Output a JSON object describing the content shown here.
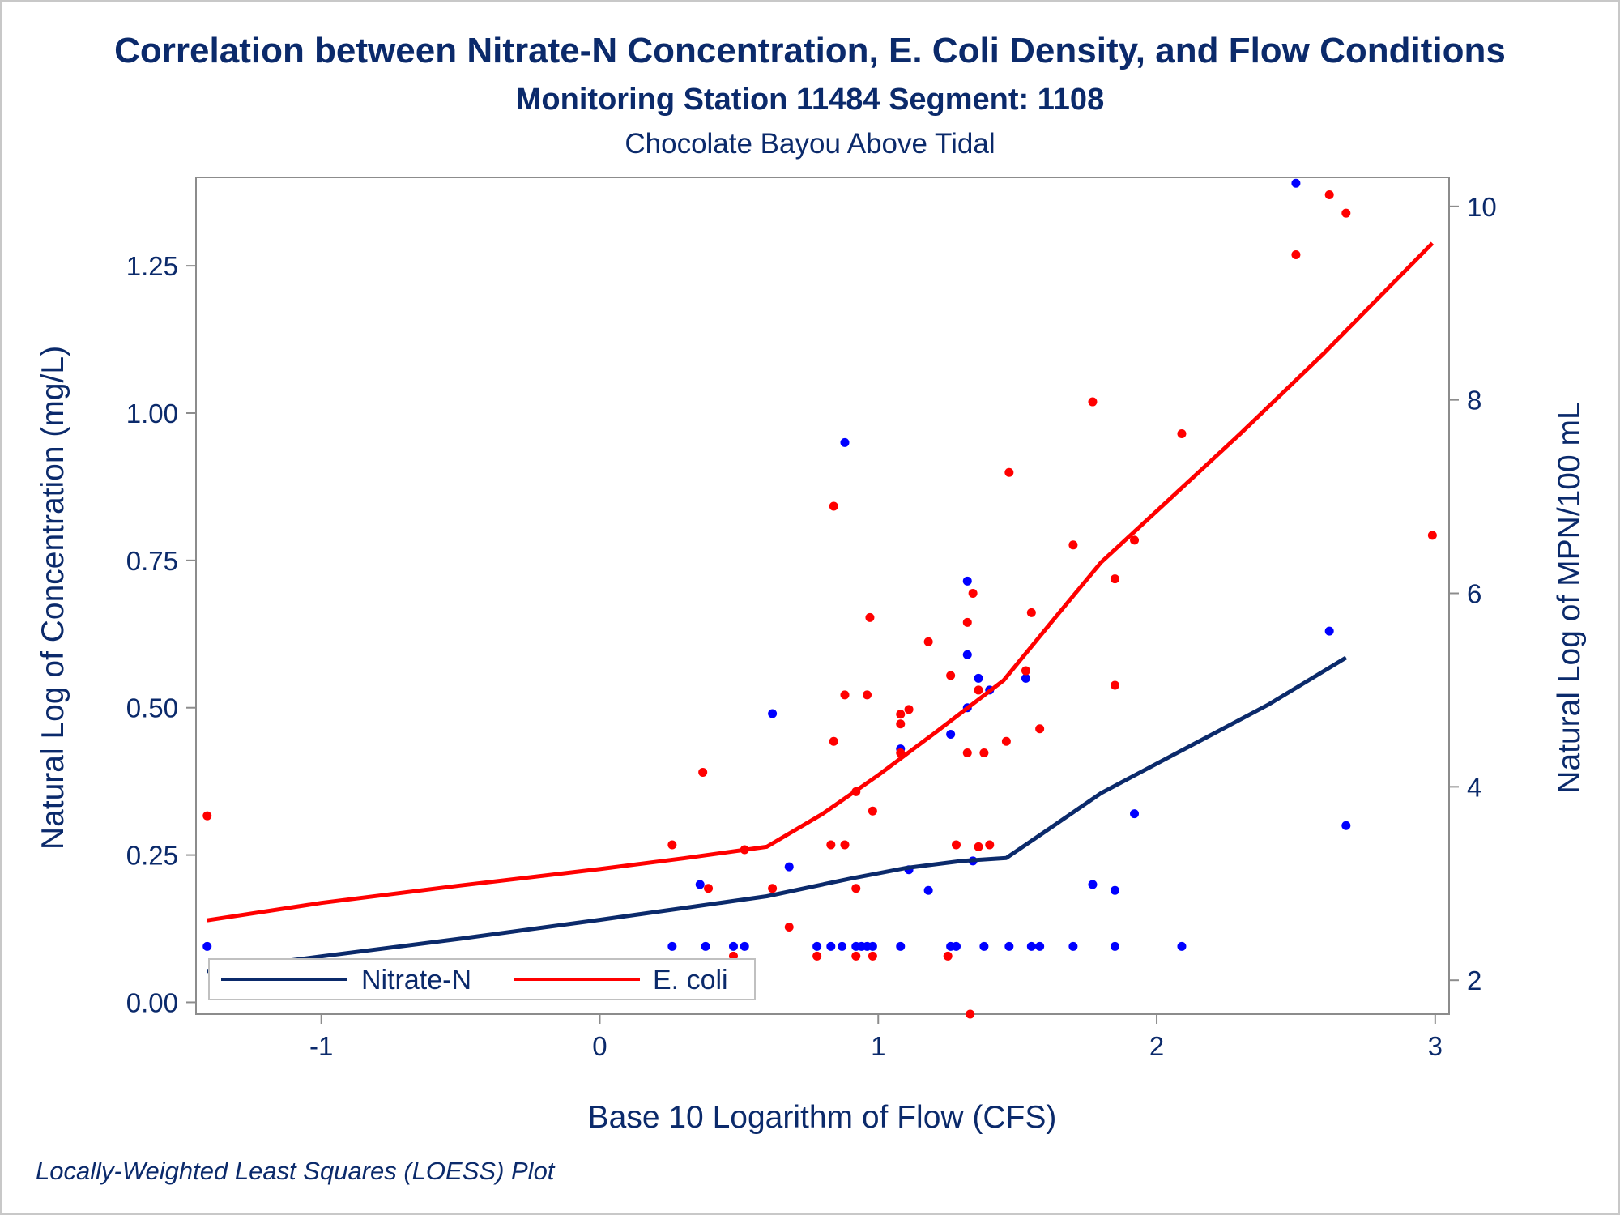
{
  "colors": {
    "title": "#0b2a6b",
    "axis_text": "#0b2a6b",
    "frame": "#8c8c8c",
    "nitrate": "#0b2a6b",
    "nitrate_points": "#0000ff",
    "ecoli": "#ff0000",
    "legend_border": "#c0c0c0"
  },
  "chart_data": {
    "type": "scatter",
    "title": "Correlation between Nitrate-N Concentration, E. Coli Density, and Flow Conditions",
    "subtitle": "Monitoring Station 11484 Segment: 1108",
    "subtitle2": "Chocolate Bayou Above Tidal",
    "footnote": "Locally-Weighted Least Squares (LOESS) Plot",
    "xlabel": "Base 10 Logarithm of Flow (CFS)",
    "ylabel": "Natural Log of Concentration (mg/L)",
    "y2label": "Natural Log of MPN/100 mL",
    "xlim": [
      -1.45,
      3.05
    ],
    "ylim": [
      -0.02,
      1.4
    ],
    "y2lim": [
      1.65,
      10.3
    ],
    "xticks": [
      -1,
      0,
      1,
      2,
      3
    ],
    "xtick_labels": [
      "-1",
      "0",
      "1",
      "2",
      "3"
    ],
    "yticks": [
      0,
      0.25,
      0.5,
      0.75,
      1.0,
      1.25
    ],
    "ytick_labels": [
      "0.00",
      "0.25",
      "0.50",
      "0.75",
      "1.00",
      "1.25"
    ],
    "y2ticks": [
      2,
      4,
      6,
      8,
      10
    ],
    "y2tick_labels": [
      "2",
      "4",
      "6",
      "8",
      "10"
    ],
    "grid": false,
    "legend": {
      "position": "bottom-left-inside",
      "entries": [
        {
          "label": "Nitrate-N",
          "series": "nitrate"
        },
        {
          "label": "E. coli",
          "series": "ecoli"
        }
      ]
    },
    "series": [
      {
        "name": "Nitrate-N",
        "axis": "left",
        "points": [
          [
            -1.41,
            0.095
          ],
          [
            0.26,
            0.095
          ],
          [
            0.36,
            0.2
          ],
          [
            0.38,
            0.095
          ],
          [
            0.48,
            0.095
          ],
          [
            0.52,
            0.095
          ],
          [
            0.62,
            0.49
          ],
          [
            0.68,
            0.23
          ],
          [
            0.78,
            0.095
          ],
          [
            0.83,
            0.095
          ],
          [
            0.87,
            0.095
          ],
          [
            0.88,
            0.95
          ],
          [
            0.92,
            0.095
          ],
          [
            0.94,
            0.095
          ],
          [
            0.96,
            0.095
          ],
          [
            0.98,
            0.095
          ],
          [
            1.08,
            0.095
          ],
          [
            1.08,
            0.43
          ],
          [
            1.11,
            0.225
          ],
          [
            1.18,
            0.19
          ],
          [
            1.26,
            0.455
          ],
          [
            1.26,
            0.095
          ],
          [
            1.28,
            0.095
          ],
          [
            1.32,
            0.715
          ],
          [
            1.32,
            0.59
          ],
          [
            1.32,
            0.5
          ],
          [
            1.34,
            0.24
          ],
          [
            1.36,
            0.55
          ],
          [
            1.38,
            0.095
          ],
          [
            1.4,
            0.53
          ],
          [
            1.47,
            0.095
          ],
          [
            1.53,
            0.55
          ],
          [
            1.55,
            0.095
          ],
          [
            1.58,
            0.095
          ],
          [
            1.7,
            0.095
          ],
          [
            1.77,
            0.2
          ],
          [
            1.85,
            0.19
          ],
          [
            1.85,
            0.095
          ],
          [
            1.92,
            0.32
          ],
          [
            2.09,
            0.095
          ],
          [
            2.5,
            1.39
          ],
          [
            2.62,
            0.63
          ],
          [
            2.68,
            0.3
          ]
        ],
        "loess": [
          [
            -1.41,
            0.053
          ],
          [
            -1.0,
            0.078
          ],
          [
            -0.5,
            0.108
          ],
          [
            0.0,
            0.14
          ],
          [
            0.3,
            0.16
          ],
          [
            0.6,
            0.18
          ],
          [
            0.9,
            0.21
          ],
          [
            1.1,
            0.228
          ],
          [
            1.3,
            0.24
          ],
          [
            1.46,
            0.245
          ],
          [
            1.6,
            0.29
          ],
          [
            1.8,
            0.355
          ],
          [
            2.0,
            0.405
          ],
          [
            2.2,
            0.455
          ],
          [
            2.4,
            0.505
          ],
          [
            2.68,
            0.585
          ]
        ]
      },
      {
        "name": "E. coli",
        "axis": "right",
        "points": [
          [
            -1.41,
            3.7
          ],
          [
            0.26,
            3.4
          ],
          [
            0.37,
            4.15
          ],
          [
            0.39,
            2.95
          ],
          [
            0.48,
            2.25
          ],
          [
            0.52,
            3.35
          ],
          [
            0.62,
            2.95
          ],
          [
            0.68,
            2.55
          ],
          [
            0.78,
            2.25
          ],
          [
            0.83,
            3.4
          ],
          [
            0.84,
            6.9
          ],
          [
            0.84,
            4.47
          ],
          [
            0.88,
            3.4
          ],
          [
            0.88,
            4.95
          ],
          [
            0.92,
            3.95
          ],
          [
            0.92,
            2.95
          ],
          [
            0.92,
            2.25
          ],
          [
            0.96,
            4.95
          ],
          [
            0.97,
            5.75
          ],
          [
            0.98,
            3.75
          ],
          [
            0.98,
            2.25
          ],
          [
            1.08,
            4.75
          ],
          [
            1.08,
            4.65
          ],
          [
            1.08,
            4.35
          ],
          [
            1.11,
            4.8
          ],
          [
            1.18,
            5.5
          ],
          [
            1.25,
            2.25
          ],
          [
            1.26,
            5.15
          ],
          [
            1.28,
            3.4
          ],
          [
            1.32,
            5.7
          ],
          [
            1.32,
            4.35
          ],
          [
            1.33,
            1.65
          ],
          [
            1.34,
            6.0
          ],
          [
            1.36,
            5.0
          ],
          [
            1.36,
            3.38
          ],
          [
            1.38,
            4.35
          ],
          [
            1.4,
            3.4
          ],
          [
            1.46,
            4.47
          ],
          [
            1.47,
            7.25
          ],
          [
            1.53,
            5.2
          ],
          [
            1.55,
            5.8
          ],
          [
            1.58,
            4.6
          ],
          [
            1.7,
            6.5
          ],
          [
            1.77,
            7.98
          ],
          [
            1.85,
            6.15
          ],
          [
            1.85,
            5.05
          ],
          [
            1.92,
            6.55
          ],
          [
            2.09,
            7.65
          ],
          [
            2.5,
            9.5
          ],
          [
            2.62,
            10.12
          ],
          [
            2.68,
            9.93
          ],
          [
            2.99,
            6.6
          ]
        ],
        "loess": [
          [
            -1.41,
            2.62
          ],
          [
            -1.0,
            2.8
          ],
          [
            -0.5,
            2.98
          ],
          [
            0.0,
            3.15
          ],
          [
            0.3,
            3.26
          ],
          [
            0.6,
            3.38
          ],
          [
            0.8,
            3.72
          ],
          [
            1.0,
            4.12
          ],
          [
            1.2,
            4.55
          ],
          [
            1.45,
            5.1
          ],
          [
            1.65,
            5.8
          ],
          [
            1.8,
            6.32
          ],
          [
            2.0,
            6.85
          ],
          [
            2.3,
            7.65
          ],
          [
            2.6,
            8.48
          ],
          [
            2.99,
            9.62
          ]
        ]
      }
    ]
  }
}
